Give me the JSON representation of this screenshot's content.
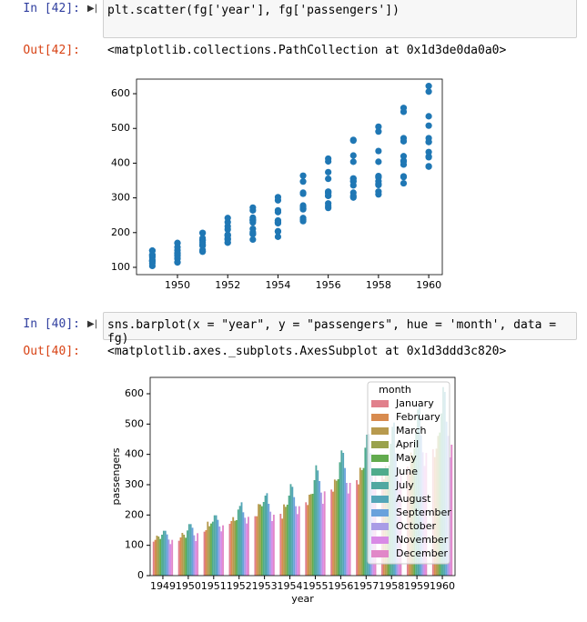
{
  "cells": [
    {
      "prompt_in": "In [42]:",
      "code": "plt.scatter(fg['year'], fg['passengers'])",
      "prompt_out": "Out[42]:",
      "output": "<matplotlib.collections.PathCollection at 0x1d3de0da0a0>"
    },
    {
      "prompt_in": "In [40]:",
      "code": "sns.barplot(x = \"year\", y = \"passengers\", hue = 'month', data = fg)",
      "prompt_out": "Out[40]:",
      "output": "<matplotlib.axes._subplots.AxesSubplot at 0x1d3ddd3c820>"
    }
  ],
  "chart_data": [
    {
      "type": "scatter",
      "color": "#1f77b4",
      "x": [
        1949,
        1949,
        1949,
        1949,
        1949,
        1949,
        1949,
        1949,
        1949,
        1949,
        1949,
        1949,
        1950,
        1950,
        1950,
        1950,
        1950,
        1950,
        1950,
        1950,
        1950,
        1950,
        1950,
        1950,
        1951,
        1951,
        1951,
        1951,
        1951,
        1951,
        1951,
        1951,
        1951,
        1951,
        1951,
        1951,
        1952,
        1952,
        1952,
        1952,
        1952,
        1952,
        1952,
        1952,
        1952,
        1952,
        1952,
        1952,
        1953,
        1953,
        1953,
        1953,
        1953,
        1953,
        1953,
        1953,
        1953,
        1953,
        1953,
        1953,
        1954,
        1954,
        1954,
        1954,
        1954,
        1954,
        1954,
        1954,
        1954,
        1954,
        1954,
        1954,
        1955,
        1955,
        1955,
        1955,
        1955,
        1955,
        1955,
        1955,
        1955,
        1955,
        1955,
        1955,
        1956,
        1956,
        1956,
        1956,
        1956,
        1956,
        1956,
        1956,
        1956,
        1956,
        1956,
        1956,
        1957,
        1957,
        1957,
        1957,
        1957,
        1957,
        1957,
        1957,
        1957,
        1957,
        1957,
        1957,
        1958,
        1958,
        1958,
        1958,
        1958,
        1958,
        1958,
        1958,
        1958,
        1958,
        1958,
        1958,
        1959,
        1959,
        1959,
        1959,
        1959,
        1959,
        1959,
        1959,
        1959,
        1959,
        1959,
        1959,
        1960,
        1960,
        1960,
        1960,
        1960,
        1960,
        1960,
        1960,
        1960,
        1960,
        1960,
        1960
      ],
      "y": [
        112,
        118,
        132,
        129,
        121,
        135,
        148,
        148,
        136,
        119,
        104,
        118,
        115,
        126,
        141,
        135,
        125,
        149,
        170,
        170,
        158,
        133,
        114,
        140,
        145,
        150,
        178,
        163,
        172,
        178,
        199,
        199,
        184,
        162,
        146,
        166,
        171,
        180,
        193,
        181,
        183,
        218,
        230,
        242,
        209,
        191,
        172,
        194,
        196,
        196,
        236,
        235,
        229,
        243,
        264,
        272,
        237,
        211,
        180,
        201,
        204,
        188,
        235,
        227,
        234,
        264,
        302,
        293,
        259,
        229,
        203,
        229,
        242,
        233,
        267,
        269,
        270,
        315,
        364,
        347,
        312,
        274,
        237,
        278,
        284,
        277,
        317,
        313,
        318,
        374,
        413,
        405,
        355,
        306,
        271,
        306,
        315,
        301,
        356,
        348,
        355,
        422,
        465,
        467,
        404,
        347,
        305,
        336,
        340,
        318,
        362,
        348,
        363,
        435,
        491,
        505,
        404,
        359,
        310,
        337,
        360,
        342,
        406,
        396,
        420,
        472,
        548,
        559,
        463,
        407,
        362,
        405,
        417,
        391,
        419,
        461,
        472,
        535,
        622,
        606,
        508,
        461,
        390,
        432
      ],
      "xlim": [
        1948.37,
        1960.54
      ],
      "ylim": [
        79,
        642
      ],
      "xticks": [
        1950,
        1952,
        1954,
        1956,
        1958,
        1960
      ],
      "yticks": [
        100,
        200,
        300,
        400,
        500,
        600
      ]
    },
    {
      "type": "bar",
      "x_label": "year",
      "y_label": "passengers",
      "legend_title": "month",
      "legend_position": "upper right",
      "categories": [
        "1949",
        "1950",
        "1951",
        "1952",
        "1953",
        "1954",
        "1955",
        "1956",
        "1957",
        "1958",
        "1959",
        "1960"
      ],
      "ylim": [
        0,
        654
      ],
      "yticks": [
        0,
        100,
        200,
        300,
        400,
        500,
        600
      ],
      "series": [
        {
          "name": "January",
          "color": "#e1808c",
          "values": [
            112,
            115,
            145,
            171,
            196,
            204,
            242,
            284,
            315,
            340,
            360,
            417
          ]
        },
        {
          "name": "February",
          "color": "#d88b4f",
          "values": [
            118,
            126,
            150,
            180,
            196,
            188,
            233,
            277,
            301,
            318,
            342,
            391
          ]
        },
        {
          "name": "March",
          "color": "#b89a4e",
          "values": [
            132,
            141,
            178,
            193,
            236,
            235,
            267,
            317,
            356,
            362,
            406,
            419
          ]
        },
        {
          "name": "April",
          "color": "#9aa24d",
          "values": [
            129,
            135,
            163,
            181,
            235,
            227,
            269,
            313,
            348,
            348,
            396,
            461
          ]
        },
        {
          "name": "May",
          "color": "#62ab4e",
          "values": [
            121,
            125,
            172,
            183,
            229,
            234,
            270,
            318,
            355,
            363,
            420,
            472
          ]
        },
        {
          "name": "June",
          "color": "#4fab8c",
          "values": [
            135,
            149,
            178,
            218,
            243,
            264,
            315,
            374,
            422,
            435,
            472,
            535
          ]
        },
        {
          "name": "July",
          "color": "#51a8a1",
          "values": [
            148,
            170,
            199,
            230,
            264,
            302,
            364,
            413,
            465,
            491,
            548,
            622
          ]
        },
        {
          "name": "August",
          "color": "#54a6b8",
          "values": [
            148,
            170,
            199,
            242,
            272,
            293,
            347,
            405,
            467,
            505,
            559,
            606
          ]
        },
        {
          "name": "September",
          "color": "#6aa2dc",
          "values": [
            136,
            158,
            184,
            209,
            237,
            259,
            312,
            355,
            404,
            404,
            463,
            508
          ]
        },
        {
          "name": "October",
          "color": "#a99ce6",
          "values": [
            119,
            133,
            162,
            191,
            211,
            229,
            274,
            306,
            347,
            359,
            407,
            461
          ]
        },
        {
          "name": "November",
          "color": "#d98ae6",
          "values": [
            104,
            114,
            146,
            172,
            180,
            203,
            237,
            271,
            305,
            310,
            362,
            390
          ]
        },
        {
          "name": "December",
          "color": "#e187c8",
          "values": [
            118,
            140,
            166,
            194,
            201,
            229,
            278,
            306,
            336,
            337,
            405,
            432
          ]
        }
      ]
    }
  ]
}
